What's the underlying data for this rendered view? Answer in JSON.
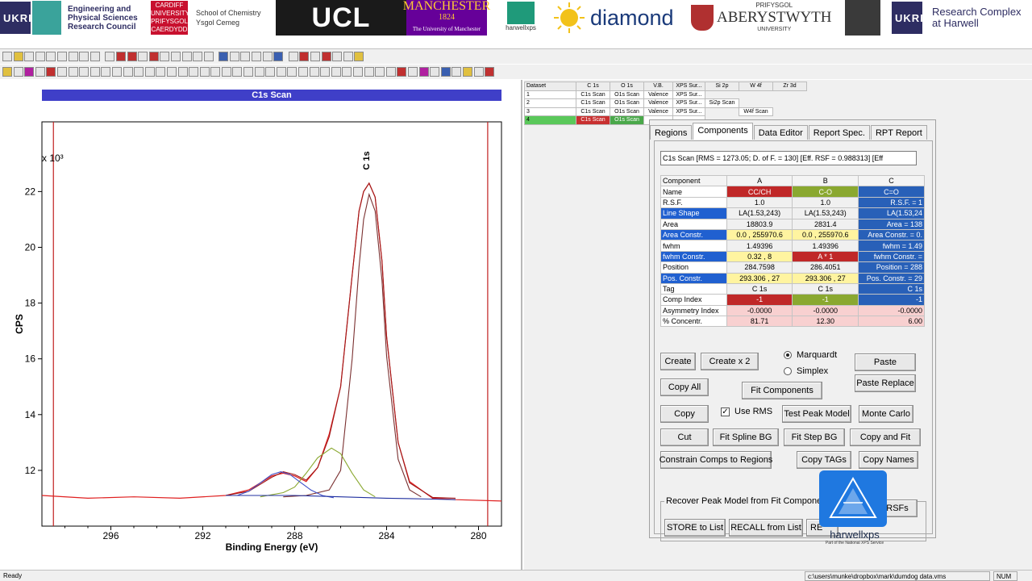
{
  "banner": {
    "ukri_left": "UKRI",
    "epsrc_lines": [
      "Engineering and",
      "Physical Sciences",
      "Research Council"
    ],
    "cardiff_lines": [
      "CARDIFF",
      "UNIVERSITY",
      "PRIFYSGOL",
      "CAERDYDD"
    ],
    "chemistry_lines": [
      "School of Chemistry",
      "Ysgol Cemeg"
    ],
    "ucl": "UCL",
    "manchester": "MANCHESTER",
    "manchester_year": "1824",
    "manchester_sub": "The University of Manchester",
    "harwellxps": "harwellxps",
    "diamond": "diamond",
    "aber_top": "PRIFYSGOL",
    "aber_main": "ABERYSTWYTH",
    "aber_bottom": "UNIVERSITY",
    "ukri_right": "UKRI",
    "rch_lines": [
      "Research Complex",
      "at Harwell"
    ]
  },
  "plot": {
    "title": "C1s Scan",
    "ylabel": "CPS",
    "xlabel": "Binding Energy (eV)",
    "exponent_label": "x 10³",
    "peak_label": "C 1s"
  },
  "chart_data": {
    "type": "line",
    "title": "C1s Scan",
    "xlabel": "Binding Energy (eV)",
    "ylabel": "CPS",
    "y_multiplier_label": "x 10³",
    "x_reversed": true,
    "xlim": [
      299,
      279
    ],
    "ylim": [
      10.0,
      24.5
    ],
    "x_ticks": [
      296,
      292,
      288,
      284,
      280
    ],
    "y_ticks": [
      12,
      14,
      16,
      18,
      20,
      22
    ],
    "region_markers_x": [
      298.5,
      279.6
    ],
    "annotations": [
      {
        "text": "C 1s",
        "x": 284.76,
        "y": 22.6
      }
    ],
    "series": [
      {
        "name": "",
        "role": "data",
        "color": "#e02020",
        "x": [
          299.0,
          297.0,
          295.0,
          293.0,
          291.0,
          290.0,
          289.0,
          288.5,
          288.0,
          287.5,
          287.0,
          286.5,
          286.0,
          285.5,
          285.2,
          285.0,
          284.76,
          284.5,
          284.2,
          284.0,
          283.5,
          283.0,
          282.0,
          281.0,
          279.0
        ],
        "y": [
          11.1,
          11.0,
          11.05,
          11.0,
          11.1,
          11.3,
          11.8,
          11.9,
          11.8,
          11.6,
          12.1,
          13.3,
          15.0,
          19.0,
          21.3,
          22.0,
          22.3,
          21.8,
          19.5,
          16.8,
          13.0,
          11.6,
          11.0,
          10.95,
          10.9
        ]
      },
      {
        "name": "",
        "role": "envelope",
        "color": "#a01818",
        "x": [
          291.0,
          290.0,
          289.0,
          288.5,
          288.0,
          287.5,
          287.0,
          286.5,
          286.0,
          285.5,
          285.2,
          285.0,
          284.76,
          284.5,
          284.2,
          284.0,
          283.5,
          283.0,
          282.0,
          281.0
        ],
        "y": [
          11.1,
          11.25,
          11.75,
          11.95,
          11.85,
          11.65,
          12.1,
          13.2,
          15.0,
          19.0,
          21.3,
          22.0,
          22.3,
          21.8,
          19.5,
          16.8,
          13.0,
          11.55,
          11.03,
          11.0
        ]
      },
      {
        "name": "",
        "role": "component",
        "color": "#7a3030",
        "x": [
          288.5,
          287.5,
          286.5,
          286.0,
          285.5,
          285.2,
          285.0,
          284.76,
          284.5,
          284.2,
          284.0,
          283.5,
          283.0,
          282.5
        ],
        "y": [
          11.05,
          11.1,
          11.3,
          12.0,
          16.0,
          19.3,
          21.0,
          21.9,
          21.3,
          18.8,
          16.1,
          12.4,
          11.3,
          11.05
        ]
      },
      {
        "name": "",
        "role": "component",
        "color": "#8aa830",
        "x": [
          289.5,
          288.5,
          288.0,
          287.5,
          287.0,
          286.4,
          286.0,
          285.5,
          285.0,
          284.5
        ],
        "y": [
          11.05,
          11.2,
          11.4,
          11.9,
          12.45,
          12.8,
          12.6,
          11.9,
          11.3,
          11.05
        ]
      },
      {
        "name": "",
        "role": "component",
        "color": "#4050c8",
        "x": [
          290.5,
          290.0,
          289.5,
          289.0,
          288.6,
          288.2,
          287.8,
          287.3,
          286.8,
          286.3
        ],
        "y": [
          11.1,
          11.25,
          11.55,
          11.85,
          11.95,
          11.85,
          11.6,
          11.3,
          11.1,
          11.02
        ]
      },
      {
        "name": "",
        "role": "background",
        "color": "#2030a0",
        "x": [
          291.0,
          288.0,
          286.0,
          284.0,
          282.0,
          281.0
        ],
        "y": [
          11.1,
          11.1,
          11.05,
          11.0,
          10.97,
          10.95
        ]
      }
    ]
  },
  "dataset_grid": {
    "headers": [
      "Dataset",
      "C 1s",
      "O 1s",
      "V.B.",
      "XPS Sur...",
      "Si 2p",
      "W 4f",
      "Zr 3d"
    ],
    "rows": [
      [
        "1",
        "C1s Scan",
        "O1s Scan",
        "Valence",
        "XPS Sur...",
        "",
        "",
        ""
      ],
      [
        "2",
        "C1s Scan",
        "O1s Scan",
        "Valence",
        "XPS Sur...",
        "Si2p Scan",
        "",
        ""
      ],
      [
        "3",
        "C1s Scan",
        "O1s Scan",
        "Valence",
        "XPS Sur...",
        "",
        "W4f Scan",
        ""
      ],
      [
        "4",
        "C1s Scan",
        "O1s Scan",
        "",
        "",
        "",
        "",
        ""
      ]
    ]
  },
  "dialog": {
    "tabs": [
      "Regions",
      "Components",
      "Data Editor",
      "Report Spec.",
      "RPT Report"
    ],
    "active_tab": "Components",
    "info_line": "C1s Scan [RMS = 1273.05; D. of F. = 130] [Eff. RSF = 0.988313] [Eff",
    "table": {
      "headers": [
        "Component",
        "A",
        "B",
        "C"
      ],
      "rows": [
        [
          "Name",
          "CC/CH",
          "C-O",
          "C=O"
        ],
        [
          "R.S.F.",
          "1.0",
          "1.0",
          "R.S.F. = 1"
        ],
        [
          "Line Shape",
          "LA(1.53,243)",
          "LA(1.53,243)",
          "LA(1.53,24"
        ],
        [
          "Area",
          "18803.9",
          "2831.4",
          "Area = 138"
        ],
        [
          "Area Constr.",
          "0.0 , 255970.6",
          "0.0 , 255970.6",
          "Area Constr. = 0."
        ],
        [
          "fwhm",
          "1.49396",
          "1.49396",
          "fwhm = 1.49"
        ],
        [
          "fwhm Constr.",
          "0.32 , 8",
          "A * 1",
          "fwhm Constr. ="
        ],
        [
          "Position",
          "284.7598",
          "286.4051",
          "Position = 288"
        ],
        [
          "Pos. Constr.",
          "293.306 , 27",
          "293.306 , 27",
          "Pos. Constr. = 29"
        ],
        [
          "Tag",
          "C 1s",
          "C 1s",
          "C 1s"
        ],
        [
          "Comp Index",
          "-1",
          "-1",
          "-1"
        ],
        [
          "Asymmetry Index",
          "-0.0000",
          "-0.0000",
          "-0.0000"
        ],
        [
          "% Concentr.",
          "81.71",
          "12.30",
          "6.00"
        ]
      ]
    },
    "buttons": {
      "create": "Create",
      "create_x2": "Create x 2",
      "paste": "Paste",
      "copy_all": "Copy All",
      "fit_components": "Fit Components",
      "paste_replace": "Paste Replace",
      "copy": "Copy",
      "test_peak_model": "Test Peak Model",
      "monte_carlo": "Monte Carlo",
      "cut": "Cut",
      "fit_spline_bg": "Fit Spline BG",
      "fit_step_bg": "Fit Step BG",
      "copy_and_fit": "Copy and Fit",
      "constrain_comps": "Constrain Comps to Regions",
      "copy_tags": "Copy TAGs",
      "copy_names": "Copy Names",
      "rsfs": "RSFs",
      "store_to_list": "STORE to List",
      "recall_from_list": "RECALL from List",
      "re": "RE"
    },
    "radio": {
      "marquardt": "Marquardt",
      "simplex": "Simplex"
    },
    "use_rms_label": "Use RMS",
    "group_title": "Recover Peak Model from Fit Components"
  },
  "watermark": {
    "name": "harwellxps",
    "sub": "Part of the National XPS Service"
  },
  "status": {
    "left": "Ready",
    "path": "c:\\users\\munke\\dropbox\\mark\\dumdog data.vms",
    "num": "NUM"
  }
}
